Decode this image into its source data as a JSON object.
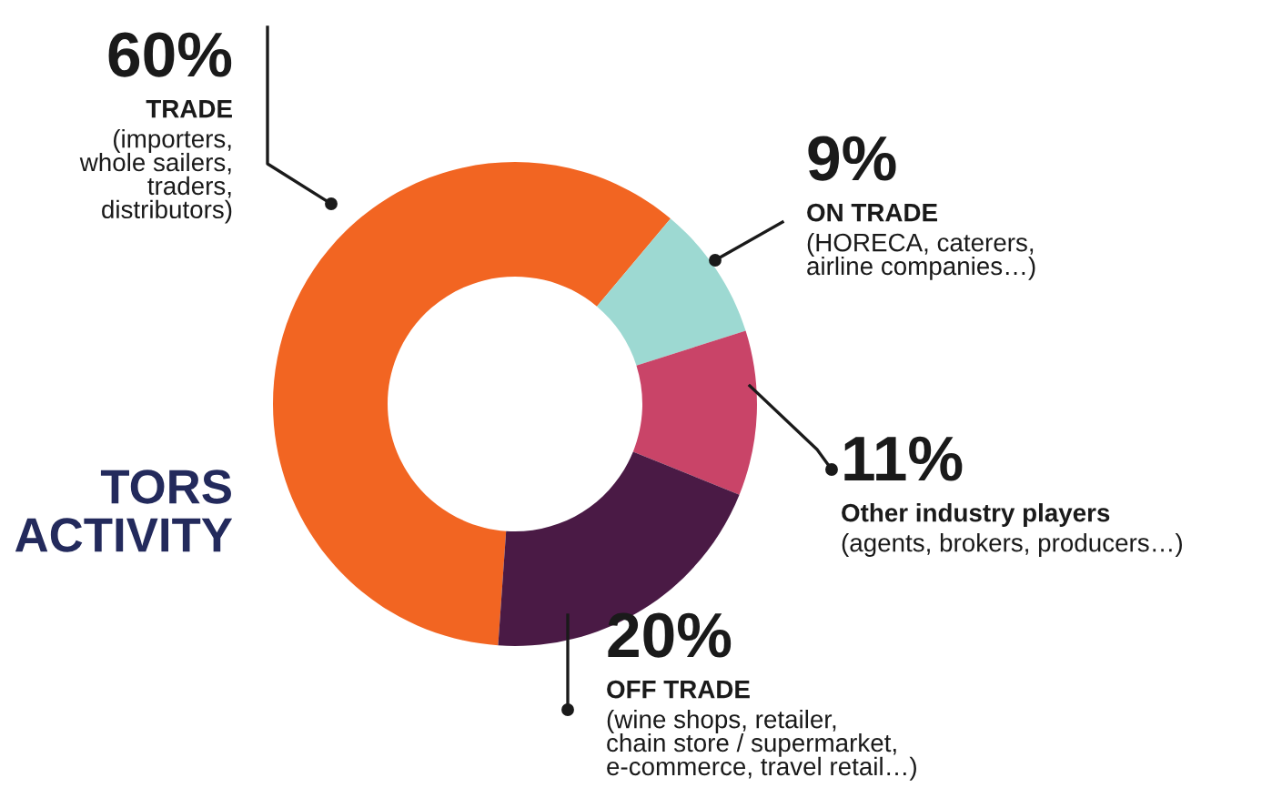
{
  "chart_data": {
    "type": "donut",
    "title": "TORS\nACTIVITY",
    "categories": [
      "TRADE",
      "ON TRADE",
      "Other industry players",
      "OFF TRADE"
    ],
    "values": [
      60,
      9,
      11,
      20
    ],
    "value_labels": [
      "60%",
      "9%",
      "11%",
      "20%"
    ],
    "colors": [
      "#f26522",
      "#9dd9d2",
      "#c94468",
      "#4a1a45"
    ],
    "annotations": [
      "(importers,\nwhole sailers,\ntraders,\ndistributors)",
      "(HORECA, caterers,\nairline companies…)",
      "(agents, brokers, producers…)",
      "(wine shops, retailer,\nchain store / supermarket,\ne-commerce, travel retail…)"
    ]
  }
}
